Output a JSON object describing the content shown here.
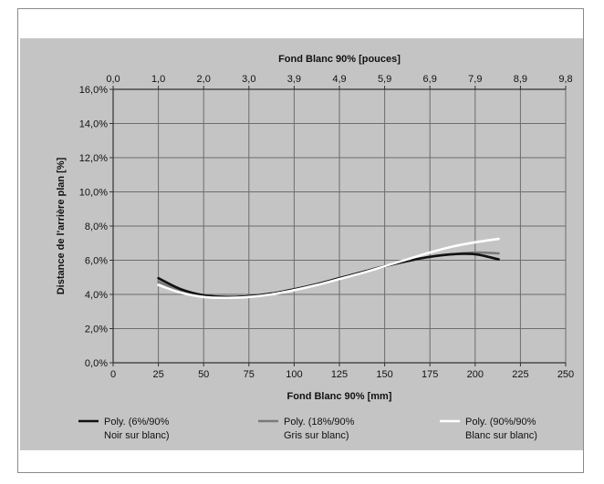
{
  "chart_data": {
    "type": "line",
    "title": "",
    "xlabel": "Fond Blanc 90% [mm]",
    "x2label": "Fond Blanc 90% [pouces]",
    "ylabel": "Distance de l'arrière plan [%]",
    "xlim": [
      0,
      250
    ],
    "ylim": [
      0,
      16
    ],
    "x_ticks": [
      "0",
      "25",
      "50",
      "75",
      "100",
      "125",
      "150",
      "175",
      "200",
      "225",
      "250"
    ],
    "x2_ticks": [
      "0,0",
      "1,0",
      "2,0",
      "3,0",
      "3,9",
      "4,9",
      "5,9",
      "6,9",
      "7,9",
      "8,9",
      "9,8"
    ],
    "y_ticks": [
      "0,0%",
      "2,0%",
      "4,0%",
      "6,0%",
      "8,0%",
      "10,0%",
      "12,0%",
      "14,0%",
      "16,0%"
    ],
    "grid": true,
    "legend_position": "bottom",
    "series": [
      {
        "name_lines": [
          "Poly. (6%/90%",
          "Noir sur blanc)"
        ],
        "color": "#111111",
        "x": [
          25,
          37.5,
          50,
          62.5,
          75,
          87.5,
          100,
          112.5,
          125,
          137.5,
          150,
          162.5,
          175,
          187.5,
          200,
          213
        ],
        "y": [
          4.95,
          4.3,
          3.95,
          3.85,
          3.9,
          4.05,
          4.3,
          4.6,
          4.95,
          5.3,
          5.65,
          5.95,
          6.2,
          6.35,
          6.35,
          6.05
        ]
      },
      {
        "name_lines": [
          "Poly. (18%/90%",
          "Gris sur blanc)"
        ],
        "color": "#7a7a7a",
        "x": [
          25,
          37.5,
          50,
          62.5,
          75,
          87.5,
          100,
          112.5,
          125,
          137.5,
          150,
          162.5,
          175,
          187.5,
          200,
          213
        ],
        "y": [
          4.75,
          4.2,
          3.95,
          3.85,
          3.9,
          4.05,
          4.3,
          4.6,
          4.95,
          5.3,
          5.65,
          5.95,
          6.2,
          6.35,
          6.45,
          6.4
        ]
      },
      {
        "name_lines": [
          "Poly. (90%/90%",
          "Blanc sur blanc)"
        ],
        "color": "#ffffff",
        "x": [
          25,
          37.5,
          50,
          62.5,
          75,
          87.5,
          100,
          112.5,
          125,
          137.5,
          150,
          162.5,
          175,
          187.5,
          200,
          213
        ],
        "y": [
          4.55,
          4.1,
          3.85,
          3.8,
          3.85,
          4.0,
          4.25,
          4.55,
          4.9,
          5.25,
          5.65,
          6.05,
          6.45,
          6.8,
          7.05,
          7.25
        ]
      }
    ]
  }
}
